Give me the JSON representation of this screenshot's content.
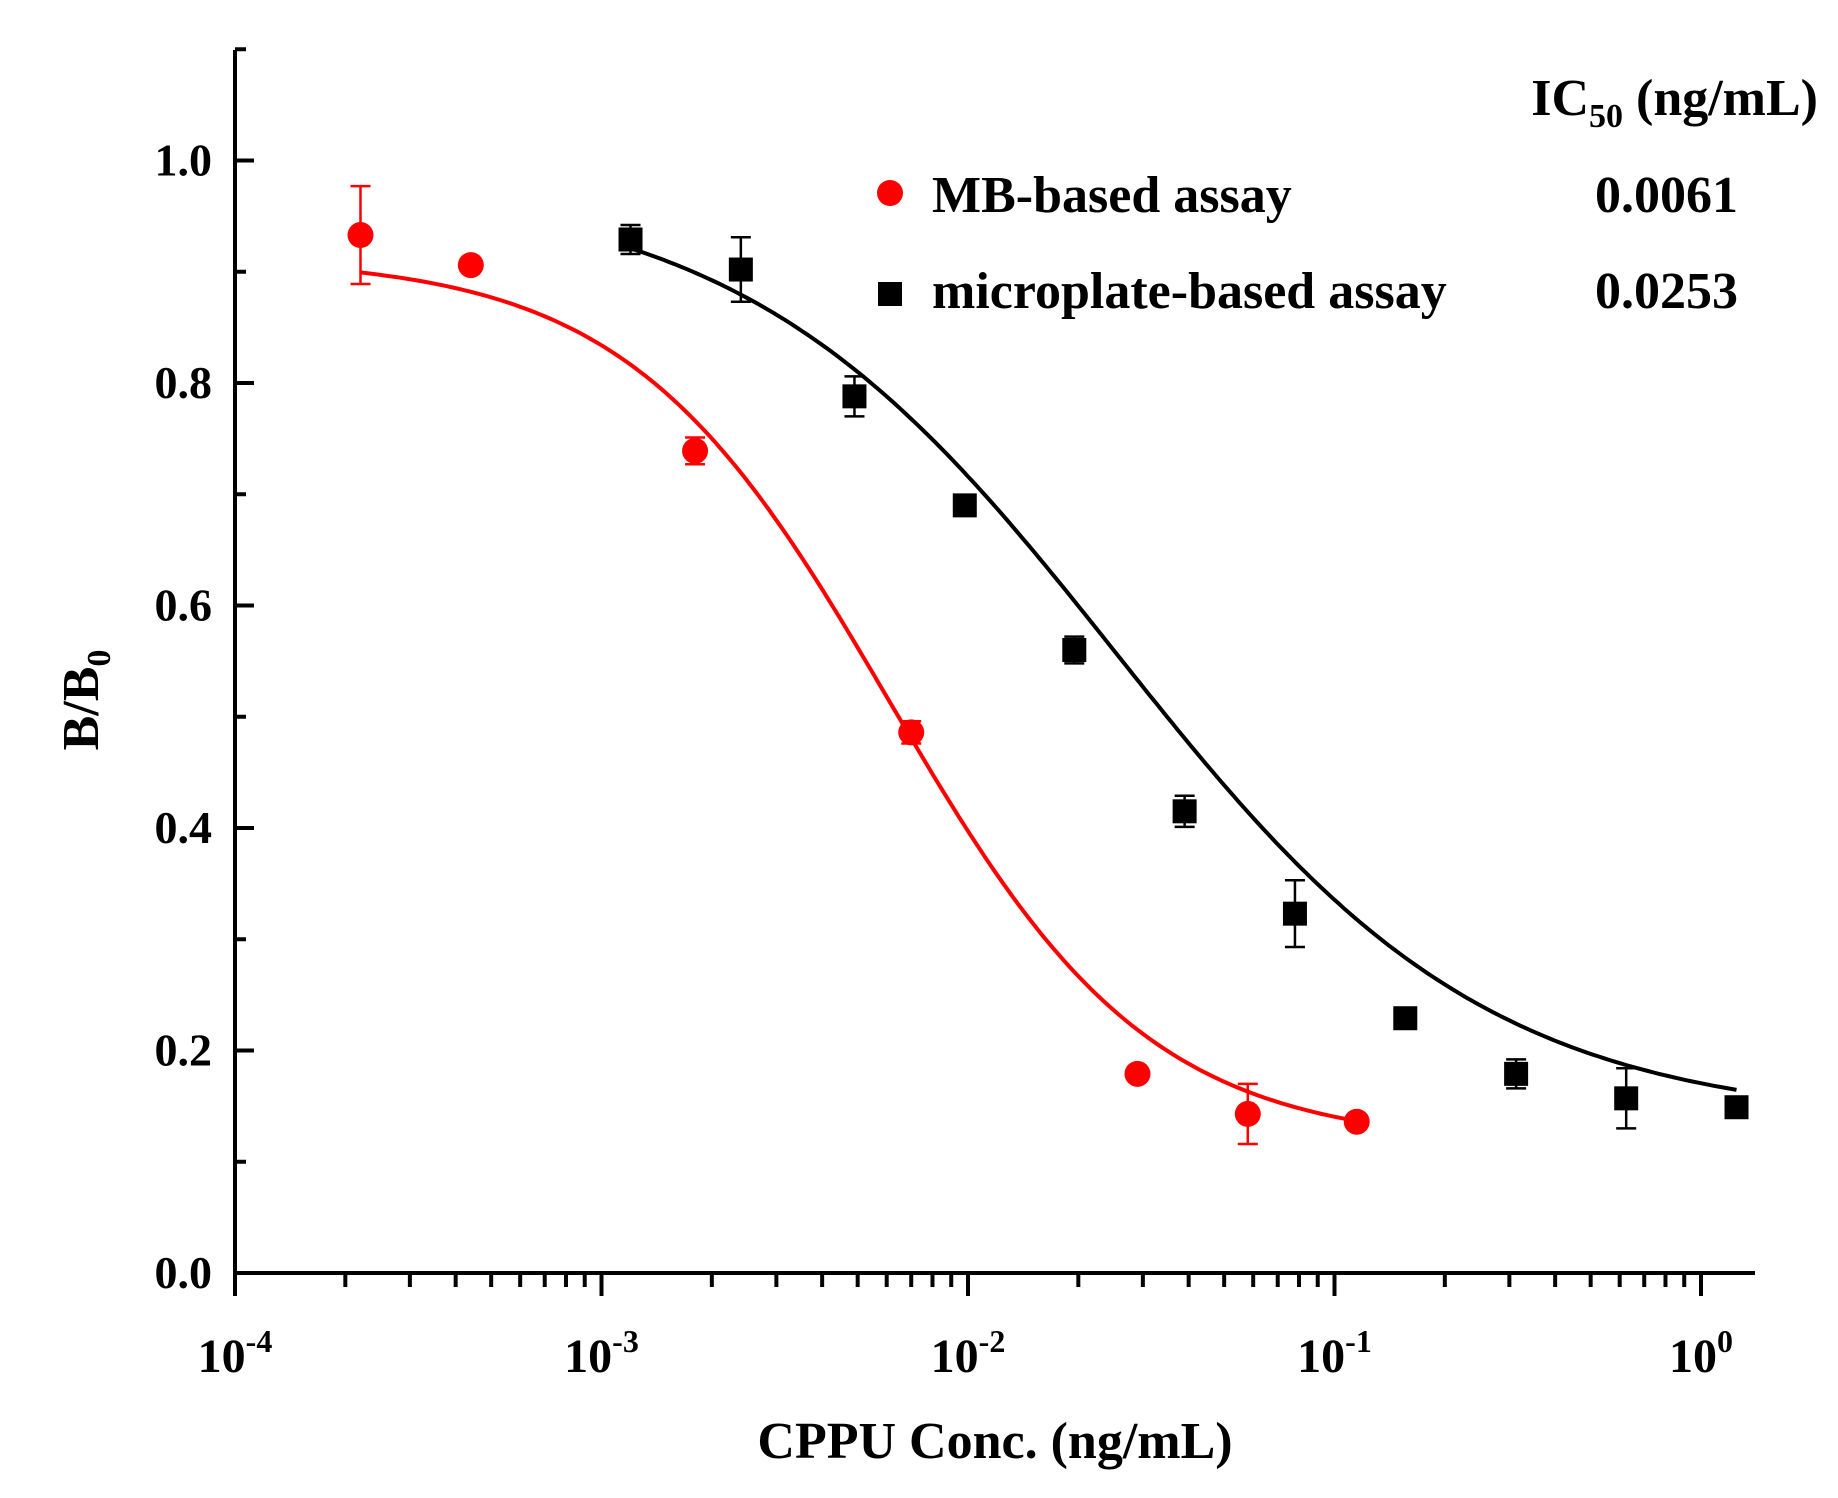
{
  "chart_data": {
    "type": "scatter",
    "title": "",
    "xlabel": "CPPU Conc. (ng/mL)",
    "ylabel_main": "B/B",
    "ylabel_sub": "0",
    "x_scale": "log10",
    "xlim": [
      0.0001,
      1.35
    ],
    "ylim": [
      0.0,
      1.1
    ],
    "y_ticks": [
      {
        "value": 0.0,
        "label": "0.0"
      },
      {
        "value": 0.2,
        "label": "0.2"
      },
      {
        "value": 0.4,
        "label": "0.4"
      },
      {
        "value": 0.6,
        "label": "0.6"
      },
      {
        "value": 0.8,
        "label": "0.8"
      },
      {
        "value": 1.0,
        "label": "1.0"
      }
    ],
    "x_ticks": [
      {
        "value": 0.0001,
        "base": "10",
        "exp": "-4"
      },
      {
        "value": 0.001,
        "base": "10",
        "exp": "-3"
      },
      {
        "value": 0.01,
        "base": "10",
        "exp": "-2"
      },
      {
        "value": 0.1,
        "base": "10",
        "exp": "-1"
      },
      {
        "value": 1.0,
        "base": "10",
        "exp": "0"
      }
    ],
    "legend_header_main": "IC",
    "legend_header_sub": "50",
    "legend_header_unit": " (ng/mL)",
    "series": [
      {
        "name": "MB-based assay",
        "ic50": "0.0061",
        "color": "#ff0000",
        "marker": "circle",
        "x": [
          0.00022,
          0.00044,
          0.0018,
          0.007,
          0.029,
          0.058,
          0.115
        ],
        "y": [
          0.933,
          0.906,
          0.739,
          0.486,
          0.179,
          0.143,
          0.136
        ],
        "err": [
          0.044,
          0.006,
          0.012,
          0.01,
          0.004,
          0.027,
          0.006
        ],
        "fit": {
          "top": 0.913,
          "bottom": 0.115,
          "ec50": 0.0061,
          "hill": 1.22,
          "x_range": [
            0.00022,
            0.115
          ]
        }
      },
      {
        "name": "microplate-based assay",
        "ic50": "0.0253",
        "color": "#000000",
        "marker": "square",
        "x": [
          0.0012,
          0.0024,
          0.0049,
          0.0098,
          0.0195,
          0.039,
          0.078,
          0.156,
          0.313,
          0.625,
          1.25
        ],
        "y": [
          0.929,
          0.902,
          0.788,
          0.69,
          0.56,
          0.415,
          0.323,
          0.229,
          0.179,
          0.157,
          0.149
        ],
        "err": [
          0.013,
          0.029,
          0.018,
          0.006,
          0.012,
          0.014,
          0.03,
          0.006,
          0.013,
          0.027,
          0.006
        ],
        "fit": {
          "top": 0.98,
          "bottom": 0.135,
          "ec50": 0.0253,
          "hill": 0.85,
          "x_range": [
            0.0012,
            1.25
          ]
        }
      }
    ]
  }
}
